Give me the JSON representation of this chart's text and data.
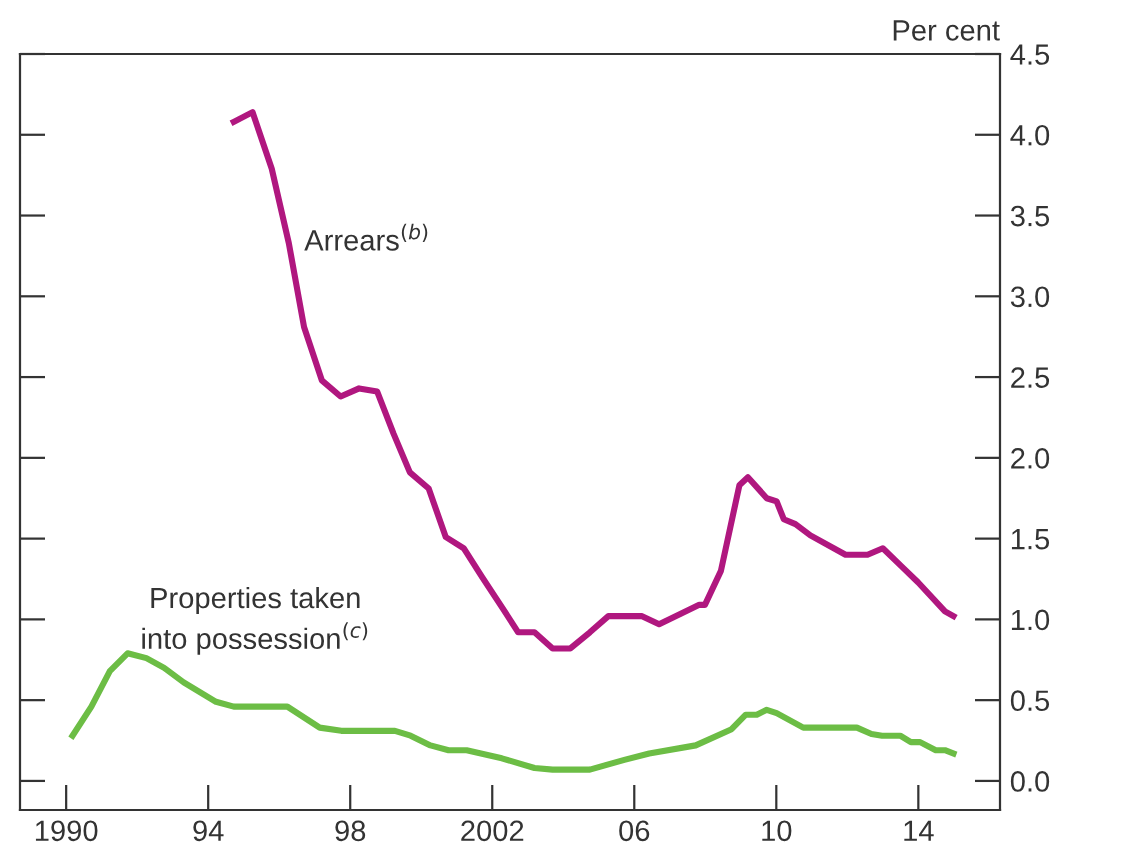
{
  "chart_data": {
    "type": "line",
    "ylabel": "Per cent",
    "xlim": [
      1988.7,
      2016.3
    ],
    "ylim": [
      -0.18,
      4.5
    ],
    "xticks": [
      1990,
      {
        "value": 1994,
        "label": "94"
      },
      {
        "value": 1998,
        "label": "98"
      },
      2002,
      {
        "value": 2006,
        "label": "06"
      },
      {
        "value": 2010,
        "label": "10"
      },
      {
        "value": 2014,
        "label": "14"
      }
    ],
    "yticks": [
      {
        "value": 0,
        "label": "0.0"
      },
      0.5,
      {
        "value": 1,
        "label": "1.0"
      },
      1.5,
      {
        "value": 2,
        "label": "2.0"
      },
      2.5,
      {
        "value": 3,
        "label": "3.0"
      },
      3.5,
      {
        "value": 4,
        "label": "4.0"
      },
      4.5
    ],
    "grid": false,
    "legend": false,
    "marker": "none",
    "line_style": "solid",
    "series": [
      {
        "name": "Arrears$^{(b)}$",
        "color": "#b0177f",
        "x": [
          1994.72,
          1995.25,
          1995.79,
          1996.27,
          1996.7,
          1997.2,
          1997.73,
          1998.25,
          1998.76,
          1999.22,
          1999.68,
          2000.21,
          2000.69,
          2001.2,
          2001.72,
          2002.29,
          2002.73,
          2003.19,
          2003.7,
          2004.2,
          2004.75,
          2005.27,
          2006.22,
          2006.7,
          2007.83,
          2007.99,
          2008.44,
          2008.96,
          2009.2,
          2009.73,
          2010.01,
          2010.21,
          2010.54,
          2010.96,
          2011.95,
          2012.57,
          2013.0,
          2013.52,
          2013.99,
          2014.75,
          2014.99
        ],
        "values": [
          4.08,
          4.14,
          3.79,
          3.33,
          2.81,
          2.48,
          2.38,
          2.43,
          2.41,
          2.15,
          1.91,
          1.81,
          1.51,
          1.44,
          1.26,
          1.07,
          0.92,
          0.92,
          0.82,
          0.82,
          0.92,
          1.02,
          1.02,
          0.97,
          1.09,
          1.09,
          1.3,
          1.83,
          1.88,
          1.75,
          1.73,
          1.62,
          1.59,
          1.52,
          1.4,
          1.4,
          1.44,
          1.33,
          1.23,
          1.05,
          1.02
        ]
      },
      {
        "name": "Properties taken\ninto possession$^{(c)}$",
        "color": "#6cbd45",
        "x": [
          1990.18,
          1990.71,
          1991.23,
          1991.73,
          1992.26,
          1992.76,
          1993.31,
          1994.22,
          1994.72,
          1996.23,
          1997.14,
          1997.75,
          1999.26,
          1999.7,
          2000.26,
          2000.77,
          2001.28,
          2002.27,
          2003.19,
          2003.7,
          2004.75,
          2005.72,
          2006.42,
          2007.73,
          2008.74,
          2009.14,
          2009.45,
          2009.73,
          2010.01,
          2010.76,
          2012.27,
          2012.68,
          2012.98,
          2013.49,
          2013.79,
          2014.05,
          2014.49,
          2014.75,
          2014.99
        ],
        "values": [
          0.28,
          0.46,
          0.68,
          0.79,
          0.76,
          0.7,
          0.61,
          0.49,
          0.46,
          0.46,
          0.33,
          0.31,
          0.31,
          0.28,
          0.22,
          0.19,
          0.19,
          0.14,
          0.08,
          0.07,
          0.07,
          0.13,
          0.17,
          0.22,
          0.32,
          0.41,
          0.41,
          0.44,
          0.42,
          0.33,
          0.33,
          0.29,
          0.28,
          0.28,
          0.24,
          0.24,
          0.19,
          0.19,
          0.17
        ]
      }
    ]
  }
}
